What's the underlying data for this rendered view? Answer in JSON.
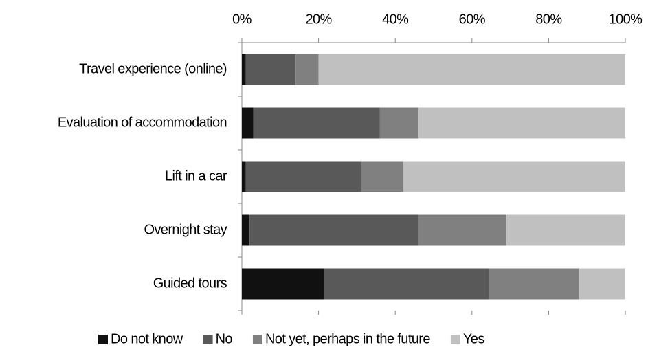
{
  "chart_data": {
    "type": "stacked_bar_horizontal",
    "categories": [
      "Travel experience (online)",
      "Evaluation of accommodation",
      "Lift in a car",
      "Overnight stay",
      "Guided tours"
    ],
    "series": [
      {
        "name": "Do not know",
        "color": "#111111",
        "values": [
          1,
          3,
          1,
          2,
          21.5
        ]
      },
      {
        "name": "No",
        "color": "#595959",
        "values": [
          13,
          33,
          30,
          44,
          43
        ]
      },
      {
        "name": "Not yet, perhaps in the future",
        "color": "#808080",
        "values": [
          6,
          10,
          11,
          23,
          23.5
        ]
      },
      {
        "name": "Yes",
        "color": "#c0c0c0",
        "values": [
          80,
          54,
          58,
          31,
          12
        ]
      }
    ],
    "xlim": [
      0,
      100
    ],
    "xticks": [
      {
        "value": 0,
        "label": "0%"
      },
      {
        "value": 20,
        "label": "20%"
      },
      {
        "value": 40,
        "label": "40%"
      },
      {
        "value": 60,
        "label": "60%"
      },
      {
        "value": 80,
        "label": "80%"
      },
      {
        "value": 100,
        "label": "100%"
      }
    ],
    "legend": "bottom"
  }
}
